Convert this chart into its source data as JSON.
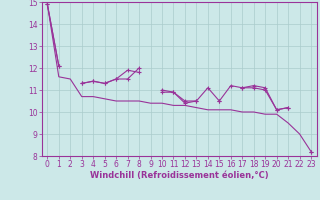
{
  "xlabel": "Windchill (Refroidissement éolien,°C)",
  "background_color": "#cce8e8",
  "grid_color": "#aacccc",
  "line_color": "#993399",
  "xlim": [
    -0.5,
    23.5
  ],
  "ylim": [
    8,
    15
  ],
  "yticks": [
    8,
    9,
    10,
    11,
    12,
    13,
    14,
    15
  ],
  "xticks": [
    0,
    1,
    2,
    3,
    4,
    5,
    6,
    7,
    8,
    9,
    10,
    11,
    12,
    13,
    14,
    15,
    16,
    17,
    18,
    19,
    20,
    21,
    22,
    23
  ],
  "hours": [
    0,
    1,
    2,
    3,
    4,
    5,
    6,
    7,
    8,
    9,
    10,
    11,
    12,
    13,
    14,
    15,
    16,
    17,
    18,
    19,
    20,
    21,
    22,
    23
  ],
  "line1": [
    14.9,
    12.1,
    null,
    11.3,
    11.4,
    11.3,
    11.5,
    11.9,
    11.8,
    null,
    11.0,
    10.9,
    10.5,
    10.5,
    11.1,
    10.5,
    11.2,
    11.1,
    11.1,
    11.0,
    10.1,
    10.2,
    null,
    8.2
  ],
  "line2": [
    14.9,
    12.1,
    null,
    11.3,
    11.4,
    11.3,
    11.5,
    11.5,
    12.0,
    null,
    10.9,
    10.9,
    10.4,
    10.5,
    null,
    10.5,
    null,
    11.1,
    11.2,
    11.1,
    10.1,
    10.2,
    null,
    8.2
  ],
  "trend": [
    14.9,
    11.6,
    11.5,
    10.7,
    10.7,
    10.6,
    10.5,
    10.5,
    10.5,
    10.4,
    10.4,
    10.3,
    10.3,
    10.2,
    10.1,
    10.1,
    10.1,
    10.0,
    10.0,
    9.9,
    9.9,
    9.5,
    9.0,
    8.2
  ],
  "xlabel_fontsize": 6,
  "tick_fontsize": 5.5,
  "linewidth": 0.8,
  "marker_size": 3
}
